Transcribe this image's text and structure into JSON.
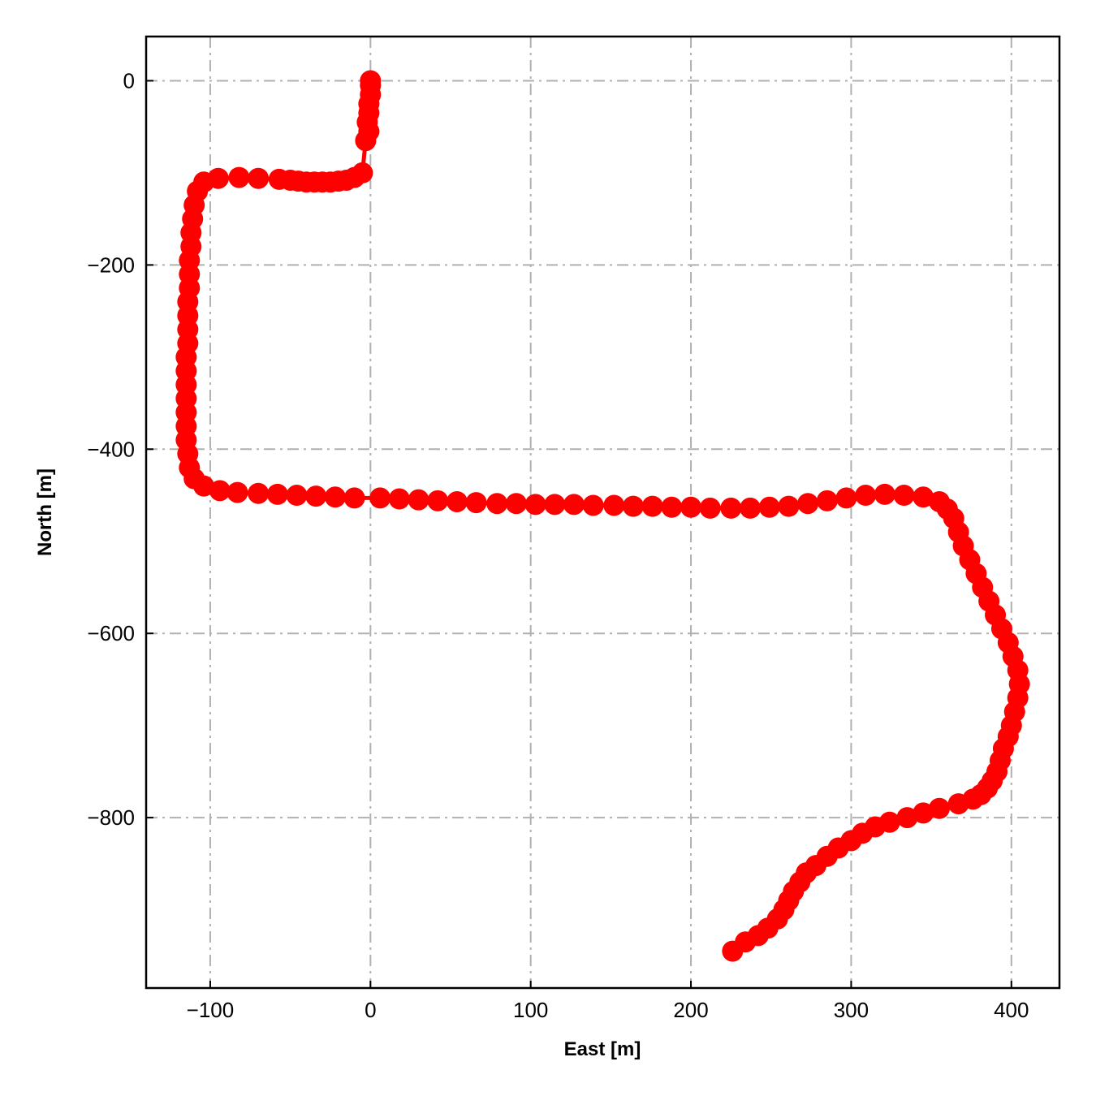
{
  "chart_data": {
    "type": "scatter",
    "title": "",
    "xlabel": "East [m]",
    "ylabel": "North [m]",
    "xlim": [
      -140,
      430
    ],
    "ylim": [
      -985,
      48
    ],
    "xticks": [
      -100,
      0,
      100,
      200,
      300,
      400
    ],
    "yticks": [
      0,
      -200,
      -400,
      -600,
      -800
    ],
    "xtick_labels": [
      "−100",
      "0",
      "100",
      "200",
      "300",
      "400"
    ],
    "ytick_labels": [
      "0",
      "−200",
      "−400",
      "−600",
      "−800"
    ],
    "grid": true,
    "grid_style": "dash-dot",
    "legend": "none",
    "series": [
      {
        "color": "#ff0000",
        "marker": "circle",
        "line": true,
        "x": [
          0,
          0,
          0,
          -1,
          -1,
          -2,
          -1,
          -3,
          -5,
          -10,
          -15,
          -20,
          -25,
          -30,
          -35,
          -40,
          -45,
          -50,
          -57,
          -70,
          -82,
          -95,
          -104,
          -108,
          -110,
          -111,
          -112,
          -112,
          -113,
          -113,
          -113,
          -114,
          -114,
          -114,
          -114,
          -115,
          -115,
          -115,
          -115,
          -115,
          -115,
          -115,
          -114,
          -113,
          -110,
          -104,
          -94,
          -83,
          -70,
          -58,
          -46,
          -34,
          -22,
          -10,
          6,
          18,
          30,
          42,
          54,
          66,
          79,
          91,
          103,
          115,
          127,
          139,
          152,
          164,
          176,
          188,
          200,
          212,
          225,
          237,
          249,
          261,
          273,
          285,
          297,
          309,
          321,
          333,
          345,
          355,
          360,
          364,
          367,
          370,
          374,
          378,
          382,
          386,
          390,
          394,
          398,
          401,
          404,
          405,
          404,
          402,
          400,
          398,
          395,
          393,
          391,
          388,
          385,
          381,
          376,
          367,
          355,
          345,
          335,
          324,
          315,
          307,
          300,
          292,
          285,
          278,
          272,
          268,
          264,
          261,
          258,
          254,
          248,
          242,
          234,
          226
        ],
        "y": [
          0,
          -5,
          -15,
          -25,
          -35,
          -45,
          -55,
          -65,
          -100,
          -105,
          -108,
          -109,
          -110,
          -110,
          -110,
          -110,
          -109,
          -108,
          -107,
          -106,
          -105,
          -106,
          -110,
          -120,
          -135,
          -150,
          -165,
          -180,
          -195,
          -210,
          -225,
          -240,
          -255,
          -270,
          -285,
          -300,
          -315,
          -330,
          -345,
          -360,
          -375,
          -390,
          -405,
          -420,
          -432,
          -440,
          -445,
          -447,
          -448,
          -449,
          -450,
          -451,
          -452,
          -453,
          -453,
          -454,
          -455,
          -456,
          -457,
          -458,
          -459,
          -459,
          -460,
          -460,
          -460,
          -461,
          -461,
          -462,
          -462,
          -463,
          -463,
          -464,
          -464,
          -464,
          -463,
          -462,
          -459,
          -456,
          -453,
          -450,
          -449,
          -450,
          -452,
          -457,
          -465,
          -475,
          -490,
          -505,
          -520,
          -535,
          -550,
          -565,
          -580,
          -595,
          -610,
          -625,
          -640,
          -655,
          -670,
          -685,
          -700,
          -712,
          -725,
          -738,
          -750,
          -760,
          -768,
          -775,
          -780,
          -785,
          -790,
          -795,
          -800,
          -805,
          -810,
          -817,
          -825,
          -833,
          -842,
          -852,
          -860,
          -870,
          -880,
          -890,
          -900,
          -910,
          -920,
          -928,
          -935,
          -945
        ]
      }
    ]
  }
}
